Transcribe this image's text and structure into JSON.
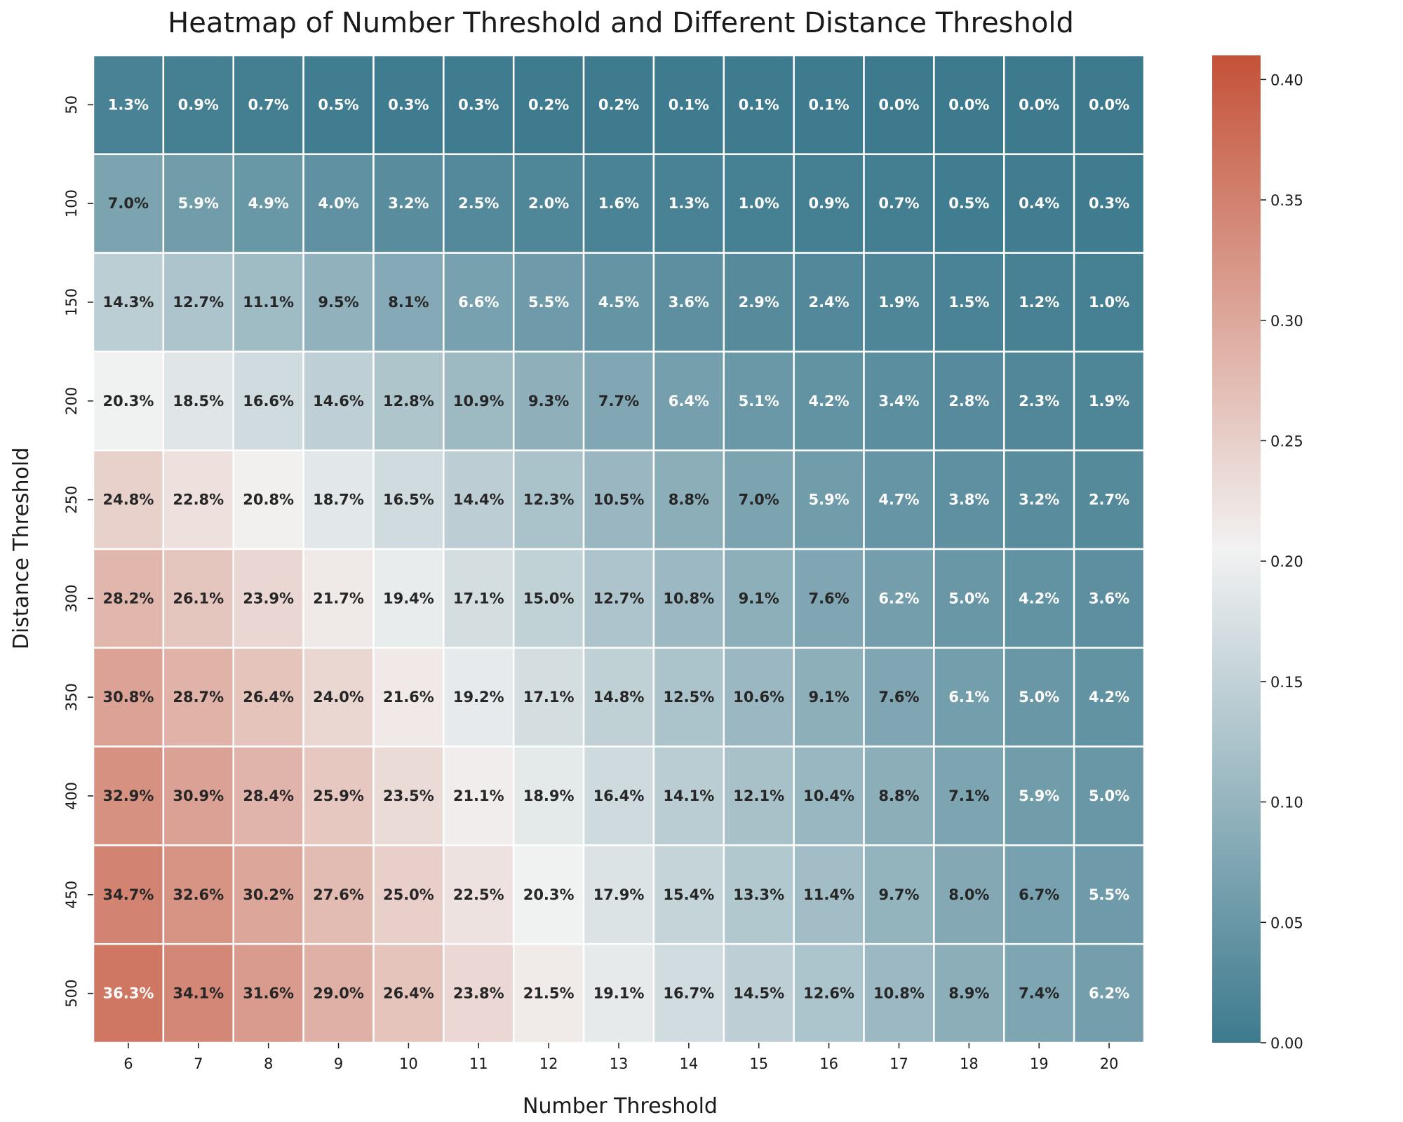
{
  "chart_data": {
    "type": "heatmap",
    "title": "Heatmap of Number Threshold and Different Distance Threshold",
    "xlabel": "Number Threshold",
    "ylabel": "Distance Threshold",
    "x": [
      6,
      7,
      8,
      9,
      10,
      11,
      12,
      13,
      14,
      15,
      16,
      17,
      18,
      19,
      20
    ],
    "y": [
      50,
      100,
      150,
      200,
      250,
      300,
      350,
      400,
      450,
      500
    ],
    "values": [
      [
        0.013,
        0.009,
        0.007,
        0.005,
        0.003,
        0.003,
        0.002,
        0.002,
        0.001,
        0.001,
        0.001,
        0.0,
        0.0,
        0.0,
        0.0
      ],
      [
        0.07,
        0.059,
        0.049,
        0.04,
        0.032,
        0.025,
        0.02,
        0.016,
        0.013,
        0.01,
        0.009,
        0.007,
        0.005,
        0.004,
        0.003
      ],
      [
        0.143,
        0.127,
        0.111,
        0.095,
        0.081,
        0.066,
        0.055,
        0.045,
        0.036,
        0.029,
        0.024,
        0.019,
        0.015,
        0.012,
        0.01
      ],
      [
        0.203,
        0.185,
        0.166,
        0.146,
        0.128,
        0.109,
        0.093,
        0.077,
        0.064,
        0.051,
        0.042,
        0.034,
        0.028,
        0.023,
        0.019
      ],
      [
        0.248,
        0.228,
        0.208,
        0.187,
        0.165,
        0.144,
        0.123,
        0.105,
        0.088,
        0.07,
        0.059,
        0.047,
        0.038,
        0.032,
        0.027
      ],
      [
        0.282,
        0.261,
        0.239,
        0.217,
        0.194,
        0.171,
        0.15,
        0.127,
        0.108,
        0.091,
        0.076,
        0.062,
        0.05,
        0.042,
        0.036
      ],
      [
        0.308,
        0.287,
        0.264,
        0.24,
        0.216,
        0.192,
        0.171,
        0.148,
        0.125,
        0.106,
        0.091,
        0.076,
        0.061,
        0.05,
        0.042
      ],
      [
        0.329,
        0.309,
        0.284,
        0.259,
        0.235,
        0.211,
        0.189,
        0.164,
        0.141,
        0.121,
        0.104,
        0.088,
        0.071,
        0.059,
        0.05
      ],
      [
        0.347,
        0.326,
        0.302,
        0.276,
        0.25,
        0.225,
        0.203,
        0.179,
        0.154,
        0.133,
        0.114,
        0.097,
        0.08,
        0.067,
        0.055
      ],
      [
        0.363,
        0.341,
        0.316,
        0.29,
        0.264,
        0.238,
        0.215,
        0.191,
        0.167,
        0.145,
        0.126,
        0.108,
        0.089,
        0.074,
        0.062
      ]
    ],
    "labels": [
      [
        "1.3%",
        "0.9%",
        "0.7%",
        "0.5%",
        "0.3%",
        "0.3%",
        "0.2%",
        "0.2%",
        "0.1%",
        "0.1%",
        "0.1%",
        "0.0%",
        "0.0%",
        "0.0%",
        "0.0%"
      ],
      [
        "7.0%",
        "5.9%",
        "4.9%",
        "4.0%",
        "3.2%",
        "2.5%",
        "2.0%",
        "1.6%",
        "1.3%",
        "1.0%",
        "0.9%",
        "0.7%",
        "0.5%",
        "0.4%",
        "0.3%"
      ],
      [
        "14.3%",
        "12.7%",
        "11.1%",
        "9.5%",
        "8.1%",
        "6.6%",
        "5.5%",
        "4.5%",
        "3.6%",
        "2.9%",
        "2.4%",
        "1.9%",
        "1.5%",
        "1.2%",
        "1.0%"
      ],
      [
        "20.3%",
        "18.5%",
        "16.6%",
        "14.6%",
        "12.8%",
        "10.9%",
        "9.3%",
        "7.7%",
        "6.4%",
        "5.1%",
        "4.2%",
        "3.4%",
        "2.8%",
        "2.3%",
        "1.9%"
      ],
      [
        "24.8%",
        "22.8%",
        "20.8%",
        "18.7%",
        "16.5%",
        "14.4%",
        "12.3%",
        "10.5%",
        "8.8%",
        "7.0%",
        "5.9%",
        "4.7%",
        "3.8%",
        "3.2%",
        "2.7%"
      ],
      [
        "28.2%",
        "26.1%",
        "23.9%",
        "21.7%",
        "19.4%",
        "17.1%",
        "15.0%",
        "12.7%",
        "10.8%",
        "9.1%",
        "7.6%",
        "6.2%",
        "5.0%",
        "4.2%",
        "3.6%"
      ],
      [
        "30.8%",
        "28.7%",
        "26.4%",
        "24.0%",
        "21.6%",
        "19.2%",
        "17.1%",
        "14.8%",
        "12.5%",
        "10.6%",
        "9.1%",
        "7.6%",
        "6.1%",
        "5.0%",
        "4.2%"
      ],
      [
        "32.9%",
        "30.9%",
        "28.4%",
        "25.9%",
        "23.5%",
        "21.1%",
        "18.9%",
        "16.4%",
        "14.1%",
        "12.1%",
        "10.4%",
        "8.8%",
        "7.1%",
        "5.9%",
        "5.0%"
      ],
      [
        "34.7%",
        "32.6%",
        "30.2%",
        "27.6%",
        "25.0%",
        "22.5%",
        "20.3%",
        "17.9%",
        "15.4%",
        "13.3%",
        "11.4%",
        "9.7%",
        "8.0%",
        "6.7%",
        "5.5%"
      ],
      [
        "36.3%",
        "34.1%",
        "31.6%",
        "29.0%",
        "26.4%",
        "23.8%",
        "21.5%",
        "19.1%",
        "16.7%",
        "14.5%",
        "12.6%",
        "10.8%",
        "8.9%",
        "7.4%",
        "6.2%"
      ]
    ],
    "colorbar": {
      "ticks": [
        "0.00",
        "0.05",
        "0.10",
        "0.15",
        "0.20",
        "0.25",
        "0.30",
        "0.35",
        "0.40"
      ],
      "range": [
        0,
        0.41
      ]
    },
    "colormap": {
      "low": "#3D7A8E",
      "mid": "#F2F2F2",
      "high": "#C45238",
      "mid_value": 0.205
    },
    "cell_border_color": "#ffffff",
    "grid": false
  }
}
